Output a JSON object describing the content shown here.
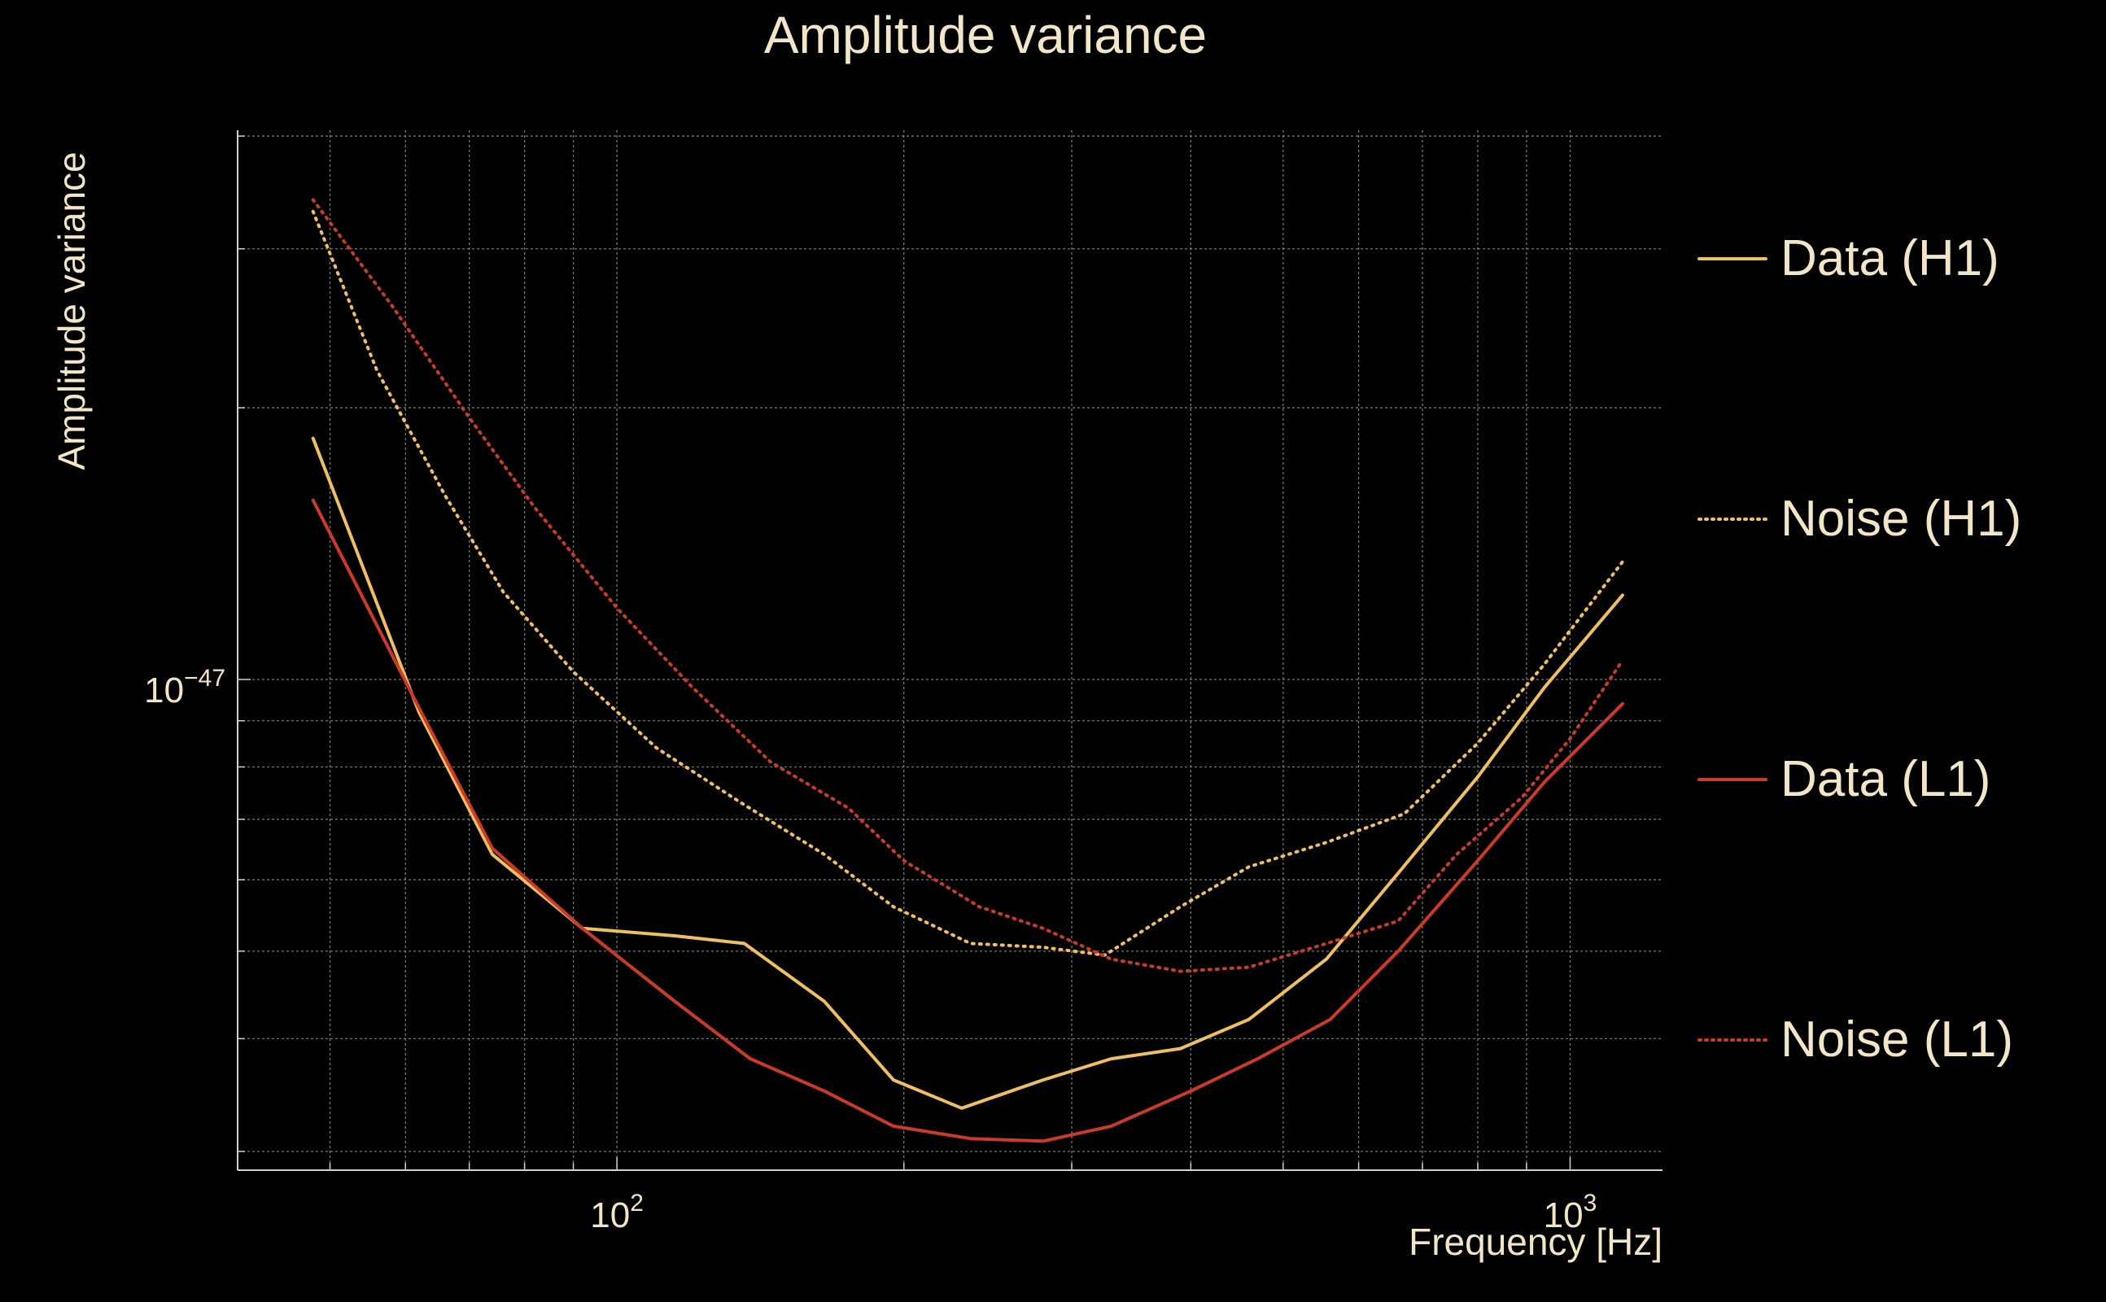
{
  "chart_data": {
    "type": "line",
    "title": "Amplitude variance",
    "xlabel": "Frequency [Hz]",
    "ylabel": "Amplitude variance",
    "x_scale": "log",
    "y_scale": "log",
    "xlim": [
      40,
      1250
    ],
    "ylim": [
      2.86e-48,
      4.06e-47
    ],
    "grid": true,
    "legend_position": "right",
    "x_ticks": [
      {
        "value": 100,
        "base": "10",
        "exp": "2"
      },
      {
        "value": 1000,
        "base": "10",
        "exp": "3"
      }
    ],
    "y_ticks": [
      {
        "value": 1e-47,
        "base": "10",
        "exp": "−47"
      }
    ],
    "series": [
      {
        "name": "Data (H1)",
        "color": "#f0c060",
        "dash": "solid",
        "x": [
          48,
          62,
          74,
          92,
          115,
          136,
          165,
          195,
          230,
          280,
          330,
          390,
          460,
          555,
          660,
          800,
          940,
          1135
        ],
        "y": [
          1.85e-47,
          9.2e-48,
          6.4e-48,
          5.3e-48,
          5.2e-48,
          5.1e-48,
          4.4e-48,
          3.6e-48,
          3.35e-48,
          3.6e-48,
          3.8e-48,
          3.9e-48,
          4.2e-48,
          4.9e-48,
          6.1e-48,
          7.8e-48,
          9.8e-48,
          1.24e-47
        ]
      },
      {
        "name": "Noise (H1)",
        "color": "#f0c060",
        "dash": "dotted",
        "x": [
          48,
          56,
          66,
          76,
          90,
          110,
          135,
          165,
          195,
          235,
          280,
          325,
          390,
          460,
          555,
          670,
          800,
          940,
          1135
        ],
        "y": [
          3.3e-47,
          2.2e-47,
          1.6e-47,
          1.25e-47,
          1.02e-47,
          8.4e-48,
          7.3e-48,
          6.4e-48,
          5.6e-48,
          5.1e-48,
          5.05e-48,
          4.95e-48,
          5.6e-48,
          6.2e-48,
          6.6e-48,
          7.1e-48,
          8.5e-48,
          1.04e-47,
          1.35e-47
        ]
      },
      {
        "name": "Data (L1)",
        "color": "#cc3a2a",
        "dash": "solid",
        "x": [
          48,
          62,
          74,
          92,
          115,
          138,
          165,
          195,
          235,
          280,
          330,
          400,
          470,
          560,
          660,
          800,
          940,
          1135
        ],
        "y": [
          1.58e-47,
          9.3e-48,
          6.5e-48,
          5.3e-48,
          4.4e-48,
          3.8e-48,
          3.5e-48,
          3.2e-48,
          3.1e-48,
          3.08e-48,
          3.2e-48,
          3.5e-48,
          3.8e-48,
          4.2e-48,
          5e-48,
          6.3e-48,
          7.7e-48,
          9.4e-48
        ]
      },
      {
        "name": "Noise (L1)",
        "color": "#cc3a2a",
        "dash": "dotted",
        "x": [
          48,
          58,
          70,
          82,
          100,
          120,
          145,
          175,
          200,
          240,
          280,
          330,
          390,
          460,
          555,
          660,
          760,
          890,
          1000,
          1135
        ],
        "y": [
          3.4e-47,
          2.6e-47,
          1.95e-47,
          1.55e-47,
          1.2e-47,
          9.8e-48,
          8.1e-48,
          7.2e-48,
          6.3e-48,
          5.6e-48,
          5.3e-48,
          4.9e-48,
          4.75e-48,
          4.8e-48,
          5.1e-48,
          5.4e-48,
          6.4e-48,
          7.4e-48,
          8.6e-48,
          1.05e-47
        ]
      }
    ]
  }
}
